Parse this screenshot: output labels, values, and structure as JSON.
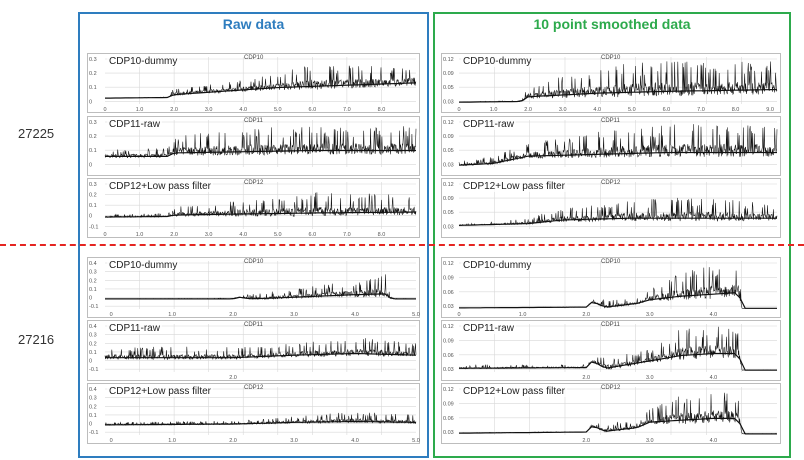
{
  "columns": {
    "raw": "Raw data",
    "smoothed": "10 point smoothed data"
  },
  "shots": [
    "27225",
    "27216"
  ],
  "colors": {
    "raw_frame": "#2e7dbf",
    "smoothed_frame": "#2daa4c",
    "divider": "#e52521",
    "signal": "#111111",
    "grid": "#d8d8d8"
  },
  "chart_data": [
    {
      "type": "line",
      "shot": "27225",
      "column": "Raw data",
      "label": "CDP10-dummy",
      "tag": "CDP10",
      "xlim": [
        0,
        9
      ],
      "x_ticks": [
        "0",
        "1.0",
        "2.0",
        "3.0",
        "4.0",
        "5.0",
        "6.0",
        "7.0",
        "8.0"
      ],
      "y_ticks": [
        "0.3",
        "0.2",
        "0.1",
        "0"
      ],
      "ylim": [
        -0.05,
        0.35
      ],
      "series": [
        {
          "points": [
            [
              0,
              0
            ],
            [
              1.8,
              0.005
            ],
            [
              2.0,
              0.03
            ],
            [
              3.0,
              0.05
            ],
            [
              4.0,
              0.07
            ],
            [
              5.0,
              0.09
            ],
            [
              6.0,
              0.1
            ],
            [
              7.0,
              0.11
            ],
            [
              8.0,
              0.12
            ],
            [
              9.0,
              0.13
            ]
          ],
          "spike_max": [
            [
              0,
              0
            ],
            [
              1.8,
              0.01
            ],
            [
              2.0,
              0.09
            ],
            [
              3.0,
              0.12
            ],
            [
              4.0,
              0.16
            ],
            [
              5.0,
              0.22
            ],
            [
              6.0,
              0.3
            ],
            [
              7.0,
              0.28
            ],
            [
              8.0,
              0.27
            ],
            [
              9.0,
              0.28
            ]
          ]
        }
      ]
    },
    {
      "type": "line",
      "shot": "27225",
      "column": "Raw data",
      "label": "CDP11-raw",
      "tag": "CDP11",
      "xlim": [
        0,
        9
      ],
      "x_ticks": [],
      "y_ticks": [
        "0.3",
        "0.2",
        "0.1",
        "0"
      ],
      "ylim": [
        -0.05,
        0.35
      ],
      "series": [
        {
          "points": [
            [
              0,
              0.04
            ],
            [
              1.8,
              0.04
            ],
            [
              2.0,
              0.07
            ],
            [
              4.0,
              0.08
            ],
            [
              6.0,
              0.09
            ],
            [
              9.0,
              0.09
            ]
          ],
          "spike_max": [
            [
              0,
              0.1
            ],
            [
              1.8,
              0.12
            ],
            [
              2.0,
              0.22
            ],
            [
              4.0,
              0.28
            ],
            [
              6.0,
              0.3
            ],
            [
              9.0,
              0.3
            ]
          ]
        }
      ]
    },
    {
      "type": "line",
      "shot": "27225",
      "column": "Raw data",
      "label": "CDP12+Low pass filter",
      "tag": "CDP12",
      "xlim": [
        0,
        9
      ],
      "x_ticks": [
        "0",
        "1.0",
        "2.0",
        "3.0",
        "4.0",
        "5.0",
        "6.0",
        "7.0",
        "8.0"
      ],
      "y_ticks": [
        "0.3",
        "0.2",
        "0.1",
        "0",
        "-0.1"
      ],
      "ylim": [
        -0.12,
        0.35
      ],
      "series": [
        {
          "points": [
            [
              0,
              0
            ],
            [
              1.8,
              0.005
            ],
            [
              2.0,
              0.02
            ],
            [
              4.0,
              0.03
            ],
            [
              6.0,
              0.04
            ],
            [
              9.0,
              0.05
            ]
          ],
          "spike_max": [
            [
              0,
              0.03
            ],
            [
              1.8,
              0.04
            ],
            [
              2.0,
              0.1
            ],
            [
              4.0,
              0.18
            ],
            [
              6.0,
              0.25
            ],
            [
              9.0,
              0.22
            ]
          ]
        }
      ]
    },
    {
      "type": "line",
      "shot": "27225",
      "column": "10 point smoothed data",
      "label": "CDP10-dummy",
      "tag": "CDP10",
      "xlim": [
        0,
        9.2
      ],
      "x_ticks": [
        "0",
        "1.0",
        "2.0",
        "3.0",
        "4.0",
        "5.0",
        "6.0",
        "7.0",
        "8.0",
        "9.0"
      ],
      "y_ticks": [
        "0.12",
        "0.09",
        "0.05",
        "0.03"
      ],
      "ylim": [
        0,
        0.13
      ],
      "series": [
        {
          "points": [
            [
              0,
              0.005
            ],
            [
              1.8,
              0.007
            ],
            [
              2.0,
              0.02
            ],
            [
              4.0,
              0.03
            ],
            [
              6.0,
              0.035
            ],
            [
              9.2,
              0.04
            ]
          ],
          "spike_max": [
            [
              0,
              0.006
            ],
            [
              1.8,
              0.01
            ],
            [
              2.0,
              0.05
            ],
            [
              3.0,
              0.08
            ],
            [
              4.5,
              0.11
            ],
            [
              6.0,
              0.12
            ],
            [
              9.2,
              0.12
            ]
          ]
        }
      ]
    },
    {
      "type": "line",
      "shot": "27225",
      "column": "10 point smoothed data",
      "label": "CDP11-raw",
      "tag": "CDP11",
      "xlim": [
        0,
        9.2
      ],
      "x_ticks": [],
      "y_ticks": [
        "0.12",
        "0.09",
        "0.05",
        "0.03"
      ],
      "ylim": [
        0,
        0.13
      ],
      "series": [
        {
          "points": [
            [
              0,
              0.005
            ],
            [
              1.0,
              0.01
            ],
            [
              2.0,
              0.03
            ],
            [
              4.0,
              0.035
            ],
            [
              6.0,
              0.04
            ],
            [
              9.2,
              0.04
            ]
          ],
          "spike_max": [
            [
              0,
              0.015
            ],
            [
              1.0,
              0.03
            ],
            [
              2.0,
              0.07
            ],
            [
              4.0,
              0.1
            ],
            [
              6.0,
              0.12
            ],
            [
              9.2,
              0.12
            ]
          ]
        }
      ]
    },
    {
      "type": "line",
      "shot": "27225",
      "column": "10 point smoothed data",
      "label": "CDP12+Low pass filter",
      "tag": "CDP12",
      "xlim": [
        0,
        9.2
      ],
      "x_ticks": [],
      "y_ticks": [
        "0.12",
        "0.09",
        "0.05",
        "0.03"
      ],
      "ylim": [
        0,
        0.13
      ],
      "series": [
        {
          "points": [
            [
              0,
              0.01
            ],
            [
              2.0,
              0.015
            ],
            [
              3.0,
              0.025
            ],
            [
              5.0,
              0.03
            ],
            [
              9.2,
              0.03
            ]
          ],
          "spike_max": [
            [
              0,
              0.012
            ],
            [
              2.0,
              0.03
            ],
            [
              3.0,
              0.06
            ],
            [
              5.0,
              0.08
            ],
            [
              7.0,
              0.09
            ],
            [
              9.2,
              0.07
            ]
          ]
        }
      ]
    },
    {
      "type": "line",
      "shot": "27216",
      "column": "Raw data",
      "label": "CDP10-dummy",
      "tag": "CDP10",
      "xlim": [
        -0.1,
        5.0
      ],
      "x_ticks": [
        "0",
        "1.0",
        "2.0",
        "3.0",
        "4.0",
        "5.0"
      ],
      "y_ticks": [
        "0.4",
        "0.3",
        "0.2",
        "0.1",
        "0",
        "-0.1"
      ],
      "ylim": [
        -0.12,
        0.45
      ],
      "series": [
        {
          "points": [
            [
              -0.1,
              0
            ],
            [
              2.0,
              0
            ],
            [
              2.1,
              0.02
            ],
            [
              2.3,
              0
            ],
            [
              3.0,
              0.02
            ],
            [
              4.0,
              0.05
            ],
            [
              4.5,
              0.06
            ],
            [
              4.6,
              0
            ],
            [
              5.0,
              0
            ]
          ],
          "spike_max": [
            [
              -0.1,
              0
            ],
            [
              2.0,
              0.01
            ],
            [
              2.1,
              0.04
            ],
            [
              3.0,
              0.12
            ],
            [
              4.0,
              0.22
            ],
            [
              4.5,
              0.3
            ],
            [
              4.6,
              0.01
            ],
            [
              5.0,
              0
            ]
          ]
        }
      ]
    },
    {
      "type": "line",
      "shot": "27216",
      "column": "Raw data",
      "label": "CDP11-raw",
      "tag": "CDP11",
      "xlim": [
        -0.1,
        5.0
      ],
      "x_ticks": [
        "2.0"
      ],
      "y_ticks": [
        "0.4",
        "0.3",
        "0.2",
        "0.1",
        "0",
        "-0.1"
      ],
      "ylim": [
        -0.12,
        0.45
      ],
      "series": [
        {
          "points": [
            [
              -0.1,
              0.05
            ],
            [
              2.0,
              0.05
            ],
            [
              3.0,
              0.08
            ],
            [
              4.0,
              0.1
            ],
            [
              5.0,
              0.08
            ]
          ],
          "spike_max": [
            [
              -0.1,
              0.18
            ],
            [
              2.0,
              0.18
            ],
            [
              3.0,
              0.22
            ],
            [
              4.0,
              0.3
            ],
            [
              5.0,
              0.22
            ]
          ]
        }
      ]
    },
    {
      "type": "line",
      "shot": "27216",
      "column": "Raw data",
      "label": "CDP12+Low pass filter",
      "tag": "CDP12",
      "xlim": [
        -0.1,
        5.0
      ],
      "x_ticks": [
        "0",
        "1.0",
        "2.0",
        "3.0",
        "4.0",
        "5.0"
      ],
      "y_ticks": [
        "0.4",
        "0.3",
        "0.2",
        "0.1",
        "0",
        "-0.1"
      ],
      "ylim": [
        -0.12,
        0.45
      ],
      "series": [
        {
          "points": [
            [
              -0.1,
              0
            ],
            [
              2.0,
              0.01
            ],
            [
              3.0,
              0.03
            ],
            [
              4.0,
              0.04
            ],
            [
              5.0,
              0.03
            ]
          ],
          "spike_max": [
            [
              -0.1,
              0.03
            ],
            [
              2.0,
              0.05
            ],
            [
              3.0,
              0.1
            ],
            [
              4.0,
              0.16
            ],
            [
              5.0,
              0.12
            ]
          ]
        }
      ]
    },
    {
      "type": "line",
      "shot": "27216",
      "column": "10 point smoothed data",
      "label": "CDP10-dummy",
      "tag": "CDP10",
      "xlim": [
        0,
        5.0
      ],
      "x_ticks": [
        "0",
        "1.0",
        "2.0",
        "3.0",
        "4.0"
      ],
      "y_ticks": [
        "0.12",
        "0.09",
        "0.06",
        "0.03"
      ],
      "ylim": [
        0,
        0.13
      ],
      "series": [
        {
          "points": [
            [
              0,
              0.003
            ],
            [
              2.0,
              0.005
            ],
            [
              2.1,
              0.02
            ],
            [
              2.3,
              0.005
            ],
            [
              2.8,
              0.015
            ],
            [
              3.0,
              0.025
            ],
            [
              3.5,
              0.035
            ],
            [
              4.0,
              0.04
            ],
            [
              4.4,
              0.045
            ],
            [
              4.45,
              0.002
            ],
            [
              5.0,
              0.002
            ]
          ],
          "spike_max": [
            [
              0,
              0.003
            ],
            [
              2.0,
              0.006
            ],
            [
              2.1,
              0.025
            ],
            [
              2.8,
              0.03
            ],
            [
              3.0,
              0.06
            ],
            [
              3.5,
              0.1
            ],
            [
              4.0,
              0.12
            ],
            [
              4.4,
              0.12
            ],
            [
              4.45,
              0.002
            ],
            [
              5.0,
              0.002
            ]
          ]
        }
      ]
    },
    {
      "type": "line",
      "shot": "27216",
      "column": "10 point smoothed data",
      "label": "CDP11-raw",
      "tag": "CDP11",
      "xlim": [
        0,
        5.0
      ],
      "x_ticks": [
        "2.0",
        "3.0",
        "4.0"
      ],
      "y_ticks": [
        "0.12",
        "0.09",
        "0.06",
        "0.03"
      ],
      "ylim": [
        0,
        0.13
      ],
      "series": [
        {
          "points": [
            [
              0,
              0.01
            ],
            [
              2.0,
              0.012
            ],
            [
              2.1,
              0.03
            ],
            [
              2.3,
              0.01
            ],
            [
              3.0,
              0.03
            ],
            [
              3.5,
              0.045
            ],
            [
              4.0,
              0.05
            ],
            [
              4.4,
              0.05
            ],
            [
              4.45,
              0.005
            ],
            [
              5.0,
              0.005
            ]
          ],
          "spike_max": [
            [
              0,
              0.02
            ],
            [
              2.0,
              0.02
            ],
            [
              2.1,
              0.04
            ],
            [
              3.0,
              0.06
            ],
            [
              3.5,
              0.12
            ],
            [
              4.0,
              0.13
            ],
            [
              4.4,
              0.13
            ],
            [
              4.45,
              0.006
            ],
            [
              5.0,
              0.006
            ]
          ]
        }
      ]
    },
    {
      "type": "line",
      "shot": "27216",
      "column": "10 point smoothed data",
      "label": "CDP12+Low pass filter",
      "tag": "CDP12",
      "xlim": [
        0,
        5.0
      ],
      "x_ticks": [
        "2.0",
        "3.0",
        "4.0"
      ],
      "y_ticks": [
        "0.12",
        "0.09",
        "0.06",
        "0.03"
      ],
      "ylim": [
        0,
        0.13
      ],
      "series": [
        {
          "points": [
            [
              0,
              0.005
            ],
            [
              2.0,
              0.008
            ],
            [
              2.1,
              0.025
            ],
            [
              2.3,
              0.01
            ],
            [
              2.8,
              0.02
            ],
            [
              3.0,
              0.035
            ],
            [
              3.5,
              0.04
            ],
            [
              4.0,
              0.045
            ],
            [
              4.4,
              0.045
            ],
            [
              4.45,
              0.003
            ],
            [
              5.0,
              0.003
            ]
          ],
          "spike_max": [
            [
              0,
              0.006
            ],
            [
              2.0,
              0.01
            ],
            [
              2.1,
              0.03
            ],
            [
              2.8,
              0.04
            ],
            [
              3.0,
              0.07
            ],
            [
              3.5,
              0.11
            ],
            [
              4.0,
              0.12
            ],
            [
              4.4,
              0.12
            ],
            [
              4.45,
              0.004
            ],
            [
              5.0,
              0.004
            ]
          ]
        }
      ]
    }
  ]
}
